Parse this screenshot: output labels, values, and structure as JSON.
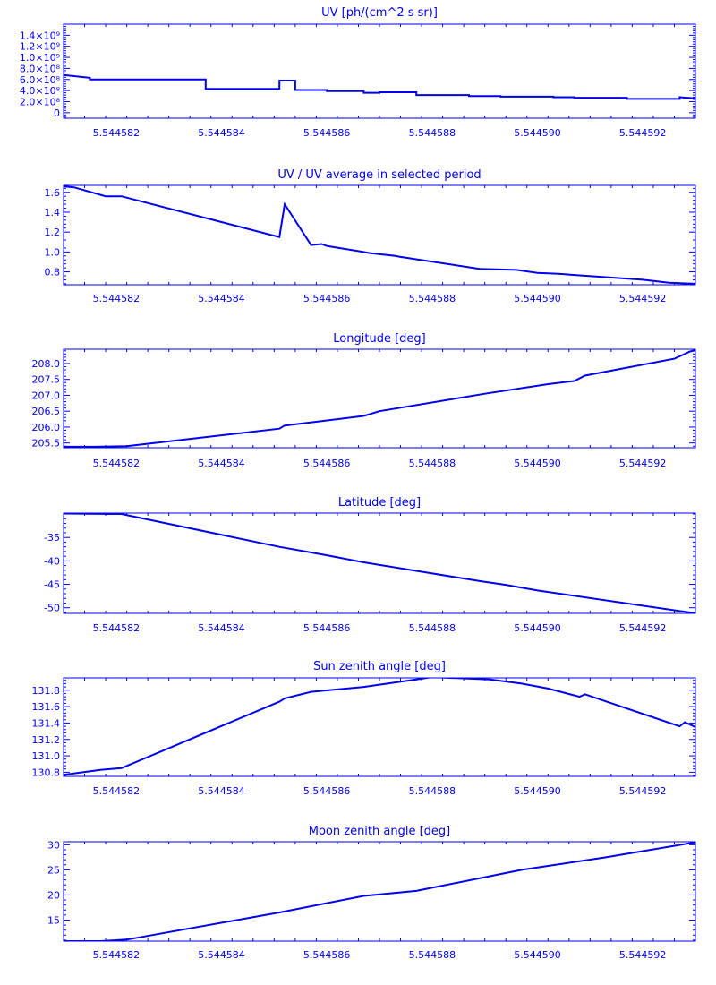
{
  "style": {
    "color": "#0000ee",
    "background": "#ffffff"
  },
  "x_tick_labels": [
    "5.544582",
    "5.544584",
    "5.544586",
    "5.544588",
    "5.544590",
    "5.544592"
  ],
  "chart_data": [
    {
      "type": "line",
      "title": "UV [ph/(cm^2 s sr)]",
      "xlim": [
        5.544581,
        5.544593
      ],
      "ylim": [
        -100000000,
        1600000000
      ],
      "y_ticks": [
        0,
        200000000,
        400000000,
        600000000,
        800000000,
        1000000000,
        1200000000,
        1400000000
      ],
      "y_tick_labels": [
        "0",
        "2.0×10⁸",
        "4.0×10⁸",
        "6.0×10⁸",
        "8.0×10⁸",
        "1.0×10⁹",
        "1.2×10⁹",
        "1.4×10⁹"
      ],
      "x": [
        5.544581,
        5.5445815,
        5.5445815,
        5.5445837,
        5.5445837,
        5.5445851,
        5.5445851,
        5.5445854,
        5.5445854,
        5.544586,
        5.544586,
        5.5445867,
        5.5445867,
        5.544587,
        5.544587,
        5.5445877,
        5.5445877,
        5.5445887,
        5.5445887,
        5.5445893,
        5.5445893,
        5.5445903,
        5.5445903,
        5.5445907,
        5.5445907,
        5.5445917,
        5.5445917,
        5.5445927,
        5.5445927,
        5.544593
      ],
      "y": [
        680000000,
        630000000,
        600000000,
        600000000,
        430000000,
        430000000,
        580000000,
        580000000,
        410000000,
        410000000,
        390000000,
        390000000,
        360000000,
        360000000,
        370000000,
        370000000,
        320000000,
        320000000,
        300000000,
        300000000,
        290000000,
        290000000,
        280000000,
        280000000,
        270000000,
        270000000,
        250000000,
        250000000,
        280000000,
        260000000
      ]
    },
    {
      "type": "line",
      "title": "UV / UV average in selected period",
      "xlim": [
        5.544581,
        5.544593
      ],
      "ylim": [
        0.67,
        1.67
      ],
      "y_ticks": [
        0.8,
        1.0,
        1.2,
        1.4,
        1.6
      ],
      "y_tick_labels": [
        "0.8",
        "1.0",
        "1.2",
        "1.4",
        "1.6"
      ],
      "x": [
        5.544581,
        5.5445812,
        5.5445818,
        5.5445821,
        5.5445851,
        5.5445852,
        5.5445857,
        5.5445859,
        5.544586,
        5.5445867,
        5.5445868,
        5.5445873,
        5.5445874,
        5.5445889,
        5.5445896,
        5.54459,
        5.5445904,
        5.544592,
        5.5445925,
        5.544593
      ],
      "y": [
        1.66,
        1.65,
        1.56,
        1.56,
        1.15,
        1.48,
        1.07,
        1.08,
        1.06,
        1.0,
        0.99,
        0.96,
        0.95,
        0.83,
        0.82,
        0.79,
        0.78,
        0.72,
        0.69,
        0.68
      ]
    },
    {
      "type": "line",
      "title": "Longitude [deg]",
      "xlim": [
        5.544581,
        5.544593
      ],
      "ylim": [
        205.35,
        208.45
      ],
      "y_ticks": [
        205.5,
        206.0,
        206.5,
        207.0,
        207.5,
        208.0
      ],
      "y_tick_labels": [
        "205.5",
        "206.0",
        "206.5",
        "207.0",
        "207.5",
        "208.0"
      ],
      "x": [
        5.544581,
        5.5445816,
        5.5445822,
        5.5445851,
        5.5445852,
        5.5445867,
        5.544587,
        5.544589,
        5.5445902,
        5.5445907,
        5.5445909,
        5.5445926,
        5.5445929,
        5.544593
      ],
      "y": [
        205.38,
        205.38,
        205.4,
        205.95,
        206.05,
        206.35,
        206.5,
        207.05,
        207.35,
        207.45,
        207.62,
        208.15,
        208.38,
        208.42
      ]
    },
    {
      "type": "line",
      "title": "Latitude [deg]",
      "xlim": [
        5.544581,
        5.544593
      ],
      "ylim": [
        -51.2,
        -29.8
      ],
      "y_ticks": [
        -50,
        -45,
        -40,
        -35
      ],
      "y_tick_labels": [
        "-50",
        "-45",
        "-40",
        "-35"
      ],
      "x": [
        5.544581,
        5.5445821,
        5.5445851,
        5.544586,
        5.5445867,
        5.5445889,
        5.5445894,
        5.54459,
        5.5445929,
        5.544593
      ],
      "y": [
        -29.9,
        -30.0,
        -37.0,
        -38.8,
        -40.3,
        -44.3,
        -45.1,
        -46.3,
        -51.0,
        -51.1
      ]
    },
    {
      "type": "line",
      "title": "Sun zenith angle [deg]",
      "xlim": [
        5.544581,
        5.544593
      ],
      "ylim": [
        130.75,
        131.95
      ],
      "y_ticks": [
        130.8,
        131.0,
        131.2,
        131.4,
        131.6,
        131.8
      ],
      "y_tick_labels": [
        "130.8",
        "131.0",
        "131.2",
        "131.4",
        "131.6",
        "131.8"
      ],
      "x": [
        5.544581,
        5.5445817,
        5.5445821,
        5.5445851,
        5.5445852,
        5.5445857,
        5.5445867,
        5.5445877,
        5.544588,
        5.5445891,
        5.5445897,
        5.5445902,
        5.5445908,
        5.5445909,
        5.5445927,
        5.5445928,
        5.544593
      ],
      "y": [
        130.77,
        130.83,
        130.85,
        131.66,
        131.7,
        131.78,
        131.84,
        131.93,
        131.96,
        131.93,
        131.88,
        131.82,
        131.72,
        131.75,
        131.36,
        131.41,
        131.35
      ]
    },
    {
      "type": "line",
      "title": "Moon zenith angle [deg]",
      "xlim": [
        5.544581,
        5.544593
      ],
      "ylim": [
        10.8,
        30.6
      ],
      "y_ticks": [
        15,
        20,
        25,
        30
      ],
      "y_tick_labels": [
        "15",
        "20",
        "25",
        "30"
      ],
      "x": [
        5.544581,
        5.5445817,
        5.5445822,
        5.5445851,
        5.5445867,
        5.5445877,
        5.5445897,
        5.5445913,
        5.544593
      ],
      "y": [
        10.8,
        10.8,
        11.1,
        16.5,
        19.8,
        20.8,
        25.0,
        27.5,
        30.5
      ]
    }
  ]
}
